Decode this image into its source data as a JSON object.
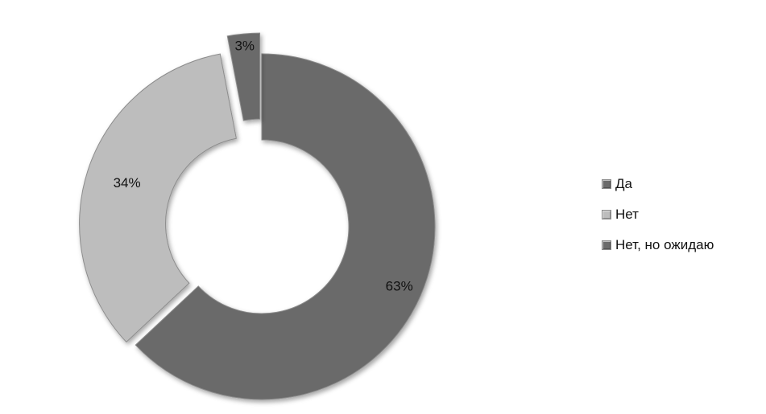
{
  "chart_data": {
    "type": "pie",
    "variant": "exploded-doughnut",
    "title": "",
    "categories": [
      "Да",
      "Нет",
      "Нет, но ожидаю"
    ],
    "values": [
      63,
      34,
      3
    ],
    "labels": [
      "63%",
      "34%",
      "3%"
    ],
    "colors": [
      "#6b6b6b",
      "#bdbdbd",
      "#6b6b6b"
    ],
    "legend_position": "right"
  }
}
